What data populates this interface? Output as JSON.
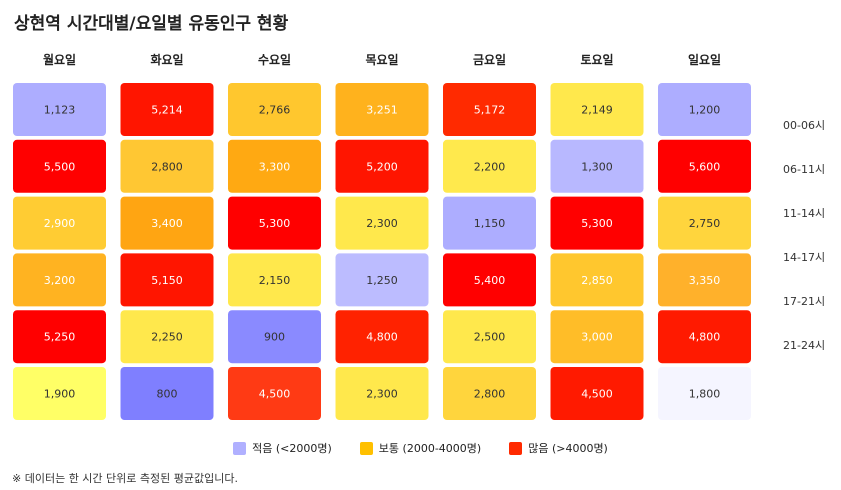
{
  "title": "상현역 시간대별/요일별 유동인구 현황",
  "footnote": "※ 데이터는 한 시간 단위로 측정된 평균값입니다.",
  "legend": [
    {
      "label": "적음 (<2000명)",
      "color": "#b0b0ff"
    },
    {
      "label": "보통 (2000-4000명)",
      "color": "#ffc000"
    },
    {
      "label": "많음 (>4000명)",
      "color": "#ff2a00"
    }
  ],
  "chart_data": {
    "type": "heatmap",
    "title": "상현역 시간대별/요일별 유동인구 현황",
    "columns": [
      "월요일",
      "화요일",
      "수요일",
      "목요일",
      "금요일",
      "토요일",
      "일요일"
    ],
    "rows": [
      "00-06시",
      "06-11시",
      "11-14시",
      "14-17시",
      "17-21시",
      "21-24시"
    ],
    "values": [
      [
        1123,
        5214,
        2766,
        3251,
        5172,
        2149,
        1200
      ],
      [
        5500,
        2800,
        3300,
        5200,
        2200,
        1300,
        5600
      ],
      [
        2900,
        3400,
        5300,
        2300,
        1150,
        5300,
        2750
      ],
      [
        3200,
        5150,
        2150,
        1250,
        5400,
        2850,
        3350
      ],
      [
        5250,
        2250,
        900,
        4800,
        2500,
        3000,
        4800
      ],
      [
        1900,
        800,
        4500,
        2300,
        2800,
        4500,
        1800
      ]
    ],
    "display_values": [
      [
        "1,123",
        "5,214",
        "2,766",
        "3,251",
        "5,172",
        "2,149",
        "1,200"
      ],
      [
        "5,500",
        "2,800",
        "3,300",
        "5,200",
        "2,200",
        "1,300",
        "5,600"
      ],
      [
        "2,900",
        "3,400",
        "5,300",
        "2,300",
        "1,150",
        "5,300",
        "2,750"
      ],
      [
        "3,200",
        "5,150",
        "2,150",
        "1,250",
        "5,400",
        "2,850",
        "3,350"
      ],
      [
        "5,250",
        "2,250",
        "900",
        "4,800",
        "2,500",
        "3,000",
        "4,800"
      ],
      [
        "1,900",
        "800",
        "4,500",
        "2,300",
        "2,800",
        "4,500",
        "1,800"
      ]
    ],
    "cell_colors": [
      [
        "#adadff",
        "#ff1500",
        "#ffc72e",
        "#ffb21d",
        "#ff2a00",
        "#ffe84c",
        "#adadff"
      ],
      [
        "#ff0000",
        "#ffc733",
        "#ffa912",
        "#ff1500",
        "#ffe94d",
        "#b8b8ff",
        "#ff0000"
      ],
      [
        "#ffcc33",
        "#ffa512",
        "#ff0000",
        "#ffe84c",
        "#adadff",
        "#ff0000",
        "#ffd53d"
      ],
      [
        "#ffb321",
        "#ff1500",
        "#ffe84c",
        "#bcbcff",
        "#ff0000",
        "#ffc72e",
        "#ffb12b"
      ],
      [
        "#ff0000",
        "#ffe84c",
        "#8a8aff",
        "#ff2200",
        "#ffe84c",
        "#ffbd28",
        "#ff1a00"
      ],
      [
        "#ffff66",
        "#7f7fff",
        "#ff3a14",
        "#ffe84c",
        "#ffd53d",
        "#ff1a00",
        "#f5f5ff"
      ]
    ],
    "label_colors": [
      [
        "#333333",
        "#ffffff",
        "#333333",
        "#ffffff",
        "#ffffff",
        "#333333",
        "#333333"
      ],
      [
        "#ffffff",
        "#333333",
        "#ffffff",
        "#ffffff",
        "#333333",
        "#333333",
        "#ffffff"
      ],
      [
        "#ffffff",
        "#ffffff",
        "#ffffff",
        "#333333",
        "#333333",
        "#ffffff",
        "#333333"
      ],
      [
        "#ffffff",
        "#ffffff",
        "#333333",
        "#333333",
        "#ffffff",
        "#ffffff",
        "#ffffff"
      ],
      [
        "#ffffff",
        "#333333",
        "#333333",
        "#ffffff",
        "#333333",
        "#ffffff",
        "#ffffff"
      ],
      [
        "#333333",
        "#333333",
        "#ffffff",
        "#333333",
        "#333333",
        "#ffffff",
        "#333333"
      ]
    ],
    "legend_position": "bottom-center"
  }
}
